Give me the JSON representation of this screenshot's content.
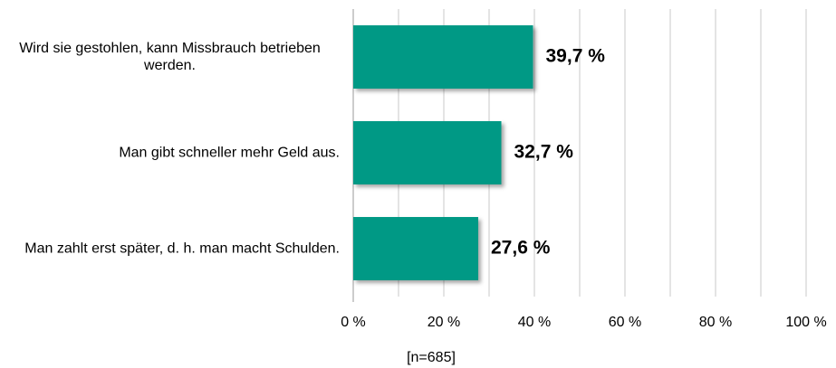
{
  "chart_data": {
    "type": "bar",
    "orientation": "horizontal",
    "categories": [
      "Wird sie gestohlen, kann Missbrauch betrieben werden.",
      "Man gibt schneller mehr Geld aus.",
      "Man zahlt erst später, d. h. man macht Schulden."
    ],
    "values": [
      39.7,
      32.7,
      27.6
    ],
    "value_labels": [
      "39,7 %",
      "32,7 %",
      "27,6 %"
    ],
    "color": "#009985",
    "xlim": [
      0,
      100
    ],
    "xticks": [
      {
        "value": 0,
        "label": "0 %"
      },
      {
        "value": 20,
        "label": "20 %"
      },
      {
        "value": 40,
        "label": "40 %"
      },
      {
        "value": 60,
        "label": "60 %"
      },
      {
        "value": 80,
        "label": "80 %"
      },
      {
        "value": 100,
        "label": "100 %"
      }
    ],
    "xticks_minor": [
      10,
      30,
      50,
      70,
      90
    ],
    "grid": true,
    "annotation": "[n=685]"
  }
}
